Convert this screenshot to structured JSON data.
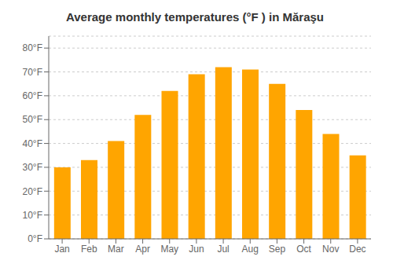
{
  "chart_data": {
    "type": "bar",
    "title": "Average monthly temperatures (°F ) in Măraşu",
    "categories": [
      "Jan",
      "Feb",
      "Mar",
      "Apr",
      "May",
      "Jun",
      "Jul",
      "Aug",
      "Sep",
      "Oct",
      "Nov",
      "Dec"
    ],
    "values": [
      30,
      33,
      41,
      52,
      62,
      69,
      72,
      71,
      65,
      54,
      44,
      35
    ],
    "color": "#FFA500",
    "ylim": [
      0,
      85
    ],
    "yticks": [
      {
        "value": 0,
        "label": "0°F"
      },
      {
        "value": 10,
        "label": "10°F"
      },
      {
        "value": 20,
        "label": "20°F"
      },
      {
        "value": 30,
        "label": "30°F"
      },
      {
        "value": 40,
        "label": "40°F"
      },
      {
        "value": 50,
        "label": "50°F"
      },
      {
        "value": 60,
        "label": "60°F"
      },
      {
        "value": 70,
        "label": "70°F"
      },
      {
        "value": 80,
        "label": "80°F"
      }
    ],
    "grid": true
  }
}
